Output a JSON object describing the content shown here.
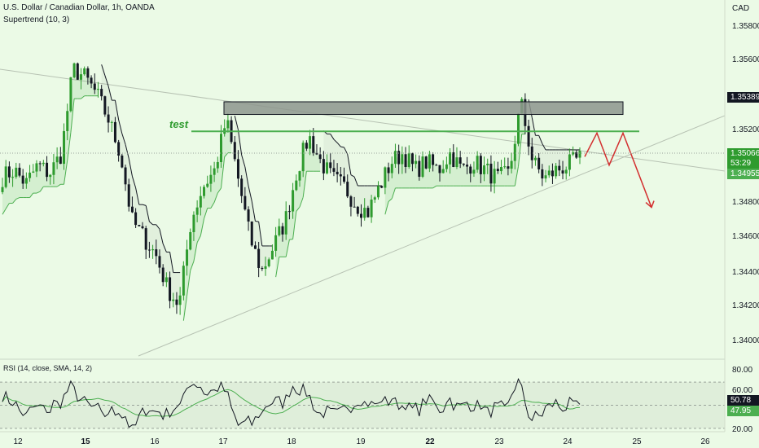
{
  "header": {
    "symbol_line": "U.S. Dollar / Canadian Dollar, 1h, OANDA",
    "indicator_line": "Supertrend (10, 3)",
    "currency": "CAD"
  },
  "annotations": {
    "test_label": "test"
  },
  "price_axis": {
    "ticks": [
      "1.35800",
      "1.35600",
      "1.35200",
      "1.34800",
      "1.34600",
      "1.34400",
      "1.34200",
      "1.34000"
    ]
  },
  "price_labels": {
    "resistance": "1.35389",
    "last": "1.35066",
    "countdown": "53:29",
    "supertrend": "1.34955"
  },
  "time_axis": {
    "labels": [
      "12",
      "15",
      "16",
      "17",
      "18",
      "19",
      "22",
      "23",
      "24",
      "25",
      "26"
    ],
    "bold": [
      "15",
      "22"
    ]
  },
  "rsi": {
    "title": "RSI (14, close, SMA, 14, 2)",
    "ticks": [
      "80.00",
      "60.00",
      "20.00"
    ],
    "rsi_value": "50.78",
    "sma_value": "47.95"
  },
  "colors": {
    "background": "#ebfae6",
    "bull": "#2e9b2e",
    "bear": "#131722",
    "supertrend_up": "#4caf50",
    "supertrend_down": "#131722",
    "resistance_box": "#8d958d",
    "test_line": "#4caf50",
    "projection": "#d32f2f",
    "rsi_line": "#131722",
    "rsi_sma": "#4caf50"
  },
  "chart_data": {
    "type": "candlestick",
    "instrument": "U.S. Dollar / Canadian Dollar",
    "timeframe": "1h",
    "x_labels": [
      "12",
      "15",
      "16",
      "17",
      "18",
      "19",
      "22",
      "23",
      "24",
      "25",
      "26"
    ],
    "y_range": [
      1.339,
      1.3595
    ],
    "price_path": [
      1.3496,
      1.35,
      1.3492,
      1.3503,
      1.3498,
      1.351,
      1.356,
      1.3555,
      1.3545,
      1.353,
      1.351,
      1.347,
      1.346,
      1.345,
      1.343,
      1.342,
      1.347,
      1.349,
      1.35,
      1.353,
      1.3495,
      1.346,
      1.344,
      1.3455,
      1.347,
      1.35,
      1.352,
      1.3505,
      1.3495,
      1.349,
      1.348,
      1.3475,
      1.349,
      1.3505,
      1.351,
      1.35,
      1.3505,
      1.35,
      1.351,
      1.35,
      1.3505,
      1.35,
      1.3495,
      1.3498,
      1.354,
      1.3505,
      1.3495,
      1.35,
      1.3503,
      1.3507
    ],
    "resistance_zone": [
      1.3533,
      1.35405
    ],
    "test_level": 1.3523,
    "projection": [
      1.3508,
      1.3522,
      1.3503,
      1.3522,
      1.3478
    ],
    "supertrend": {
      "period": 10,
      "multiplier": 3
    },
    "rsi": {
      "length": 14,
      "source": "close",
      "smoothing": "SMA",
      "smoothing_length": 14,
      "last": 50.78,
      "sma_last": 47.95,
      "bands": [
        70,
        30
      ]
    }
  }
}
